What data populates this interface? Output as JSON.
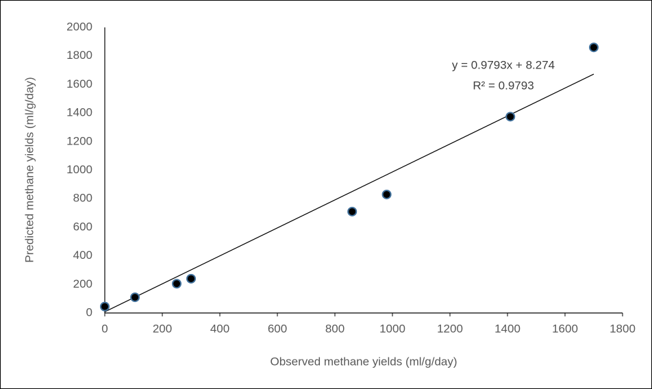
{
  "chart_data": {
    "type": "scatter",
    "x_label": "Observed methane yields (ml/g/day)",
    "y_label": "Predicted methane yields (ml/g/day)",
    "x": [
      0,
      105,
      250,
      300,
      860,
      980,
      1410,
      1700
    ],
    "values": [
      45,
      110,
      205,
      240,
      710,
      830,
      1375,
      1860
    ],
    "color": "#000000",
    "edge_color": "#41719c",
    "xlim": [
      0,
      1800
    ],
    "ylim": [
      0,
      2000
    ],
    "xticks": [
      0,
      200,
      400,
      600,
      800,
      1000,
      1200,
      1400,
      1600,
      1800
    ],
    "yticks": [
      0,
      200,
      400,
      600,
      800,
      1000,
      1200,
      1400,
      1600,
      1800,
      2000
    ],
    "grid": false,
    "trendline": {
      "equation": "y = 0.9793x + 8.274",
      "r_squared_label": "R² = 0.9793",
      "slope": 0.9793,
      "intercept": 8.274
    }
  }
}
